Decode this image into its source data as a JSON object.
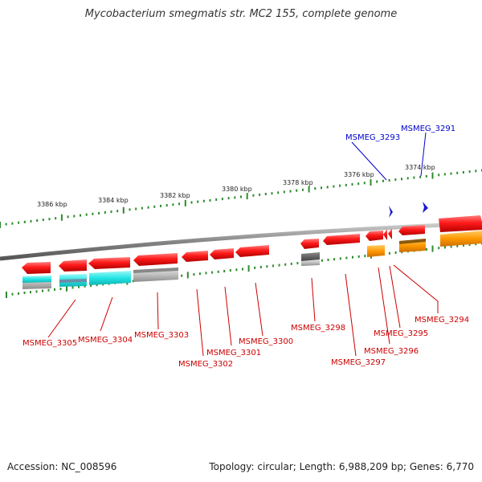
{
  "title": "Mycobacterium smegmatis str. MC2 155, complete genome",
  "footer": {
    "accession": "Accession: NC_008596",
    "summary": "Topology: circular; Length: 6,988,209 bp; Genes: 6,770"
  },
  "colors": {
    "backbone": "#8a8a8a",
    "tick": "#2e8b2e",
    "cds_forward": "#ff1a1a",
    "cds_reverse": "#ff1a1a",
    "rna": "#1a1acc",
    "cog_cyan": "#22e5e5",
    "cog_gray": "#c0c0c0",
    "cog_dark": "#555555",
    "cog_orange": "#ff9900",
    "label_cds": "#cc0000",
    "label_rna": "#0000cc"
  },
  "kbp_ticks": [
    {
      "label": "3386 kbp"
    },
    {
      "label": "3384 kbp"
    },
    {
      "label": "3382 kbp"
    },
    {
      "label": "3380 kbp"
    },
    {
      "label": "3378 kbp"
    },
    {
      "label": "3376 kbp"
    },
    {
      "label": "3374 kbp"
    }
  ],
  "genes": {
    "forward_rna": [
      "MSMEG_3293",
      "MSMEG_3291"
    ],
    "reverse_cds": [
      "MSMEG_3305",
      "MSMEG_3304",
      "MSMEG_3303",
      "MSMEG_3302",
      "MSMEG_3301",
      "MSMEG_3300",
      "MSMEG_3298",
      "MSMEG_3297",
      "MSMEG_3296",
      "MSMEG_3295",
      "MSMEG_3294"
    ]
  }
}
